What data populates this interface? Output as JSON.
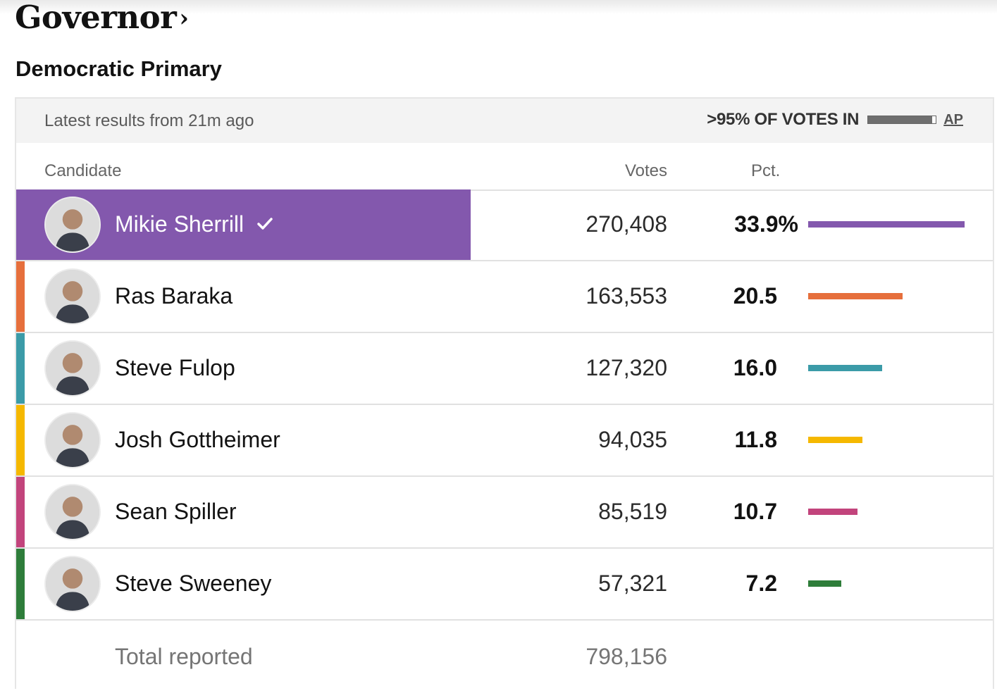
{
  "page": {
    "title": "Governor",
    "title_chevron": "›",
    "race": "Democratic Primary"
  },
  "status": {
    "latest": "Latest results from 21m ago",
    "reporting": ">95% OF VOTES IN",
    "reporting_fraction": 0.95,
    "source": "AP"
  },
  "table": {
    "headers": {
      "candidate": "Candidate",
      "votes": "Votes",
      "pct": "Pct."
    },
    "candidates": [
      {
        "name": "Mikie Sherrill",
        "votes": "270,408",
        "pct": "33.9%",
        "pct_value": 33.9,
        "color": "#8358ad",
        "winner": true,
        "avatar_icon": "candidate-photo"
      },
      {
        "name": "Ras Baraka",
        "votes": "163,553",
        "pct": "20.5",
        "pct_value": 20.5,
        "color": "#e66f3c",
        "winner": false,
        "avatar_icon": "candidate-photo"
      },
      {
        "name": "Steve Fulop",
        "votes": "127,320",
        "pct": "16.0",
        "pct_value": 16.0,
        "color": "#3b9ba8",
        "winner": false,
        "avatar_icon": "candidate-photo"
      },
      {
        "name": "Josh Gottheimer",
        "votes": "94,035",
        "pct": "11.8",
        "pct_value": 11.8,
        "color": "#f5b800",
        "winner": false,
        "avatar_icon": "candidate-photo"
      },
      {
        "name": "Sean Spiller",
        "votes": "85,519",
        "pct": "10.7",
        "pct_value": 10.7,
        "color": "#c2447c",
        "winner": false,
        "avatar_icon": "candidate-photo"
      },
      {
        "name": "Steve Sweeney",
        "votes": "57,321",
        "pct": "7.2",
        "pct_value": 7.2,
        "color": "#2e7d3a",
        "winner": false,
        "avatar_icon": "candidate-photo"
      }
    ],
    "total": {
      "label": "Total reported",
      "votes": "798,156"
    }
  },
  "colors": {
    "winner_highlight": "#8358ad"
  }
}
